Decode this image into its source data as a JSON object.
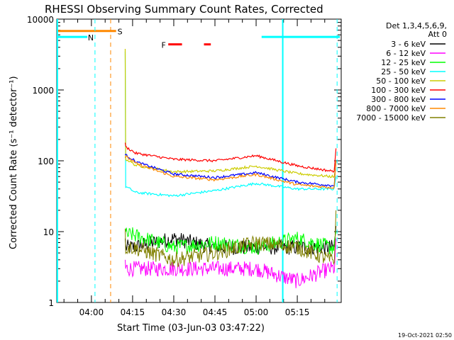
{
  "chart_data": {
    "type": "line",
    "title": "RHESSI Observing Summary Count Rates, Corrected",
    "xlabel": "Start Time (03-Jun-03 03:47:22)",
    "ylabel": "Corrected Count Rate (s⁻¹ detector⁻¹)",
    "yscale": "log",
    "ylim": [
      1,
      10000
    ],
    "xlim_minutes": [
      227.37,
      331
    ],
    "x_ticks": [
      {
        "m": 240,
        "label": "04:00"
      },
      {
        "m": 255,
        "label": "04:15"
      },
      {
        "m": 270,
        "label": "04:30"
      },
      {
        "m": 285,
        "label": "04:45"
      },
      {
        "m": 300,
        "label": "05:00"
      },
      {
        "m": 315,
        "label": "05:15"
      }
    ],
    "y_ticks": [
      {
        "v": 1,
        "label": "1"
      },
      {
        "v": 10,
        "label": "10"
      },
      {
        "v": 100,
        "label": "100"
      },
      {
        "v": 1000,
        "label": "1000"
      },
      {
        "v": 10000,
        "label": "10000"
      }
    ],
    "legend": {
      "header": [
        "Det 1,3,4,5,6,9,",
        "Att 0"
      ],
      "position": "right"
    },
    "series": [
      {
        "name": "3 - 6 keV",
        "color": "#000000",
        "x": [
          255,
          270,
          285,
          300,
          315,
          327
        ],
        "y": [
          6,
          8,
          6,
          6,
          6,
          6
        ]
      },
      {
        "name": "6 - 12 keV",
        "color": "#ff00ff",
        "x": [
          255,
          270,
          285,
          300,
          315,
          327
        ],
        "y": [
          3,
          3,
          3,
          3,
          2,
          3
        ]
      },
      {
        "name": "12 - 25 keV",
        "color": "#00ff00",
        "x": [
          255,
          270,
          285,
          300,
          315,
          327
        ],
        "y": [
          9,
          6,
          7,
          6,
          8,
          6
        ]
      },
      {
        "name": "25 - 50 keV",
        "color": "#00ffff",
        "x": [
          255,
          270,
          285,
          300,
          315,
          327
        ],
        "y": [
          36,
          32,
          38,
          48,
          40,
          40
        ]
      },
      {
        "name": "50 - 100 keV",
        "color": "#cccc00",
        "x": [
          255,
          270,
          285,
          300,
          315,
          327
        ],
        "y": [
          88,
          70,
          72,
          84,
          66,
          60
        ]
      },
      {
        "name": "100 - 300 keV",
        "color": "#ff0000",
        "x": [
          255,
          270,
          285,
          300,
          315,
          327
        ],
        "y": [
          130,
          105,
          100,
          118,
          85,
          72
        ]
      },
      {
        "name": "300 - 800 keV",
        "color": "#0000ff",
        "x": [
          255,
          270,
          285,
          300,
          315,
          327
        ],
        "y": [
          100,
          65,
          58,
          68,
          50,
          45
        ]
      },
      {
        "name": "800 - 7000 keV",
        "color": "#ff8800",
        "x": [
          255,
          270,
          285,
          300,
          315,
          327
        ],
        "y": [
          95,
          60,
          54,
          64,
          46,
          42
        ]
      },
      {
        "name": "7000 - 15000 keV",
        "color": "#808000",
        "x": [
          255,
          270,
          285,
          300,
          315,
          327
        ],
        "y": [
          6,
          4,
          5,
          7,
          6,
          4
        ]
      }
    ],
    "annotations": {
      "saa_label": "S",
      "night_label": "N",
      "flare_label": "F"
    },
    "footer_date": "19-Oct-2021 02:50"
  }
}
